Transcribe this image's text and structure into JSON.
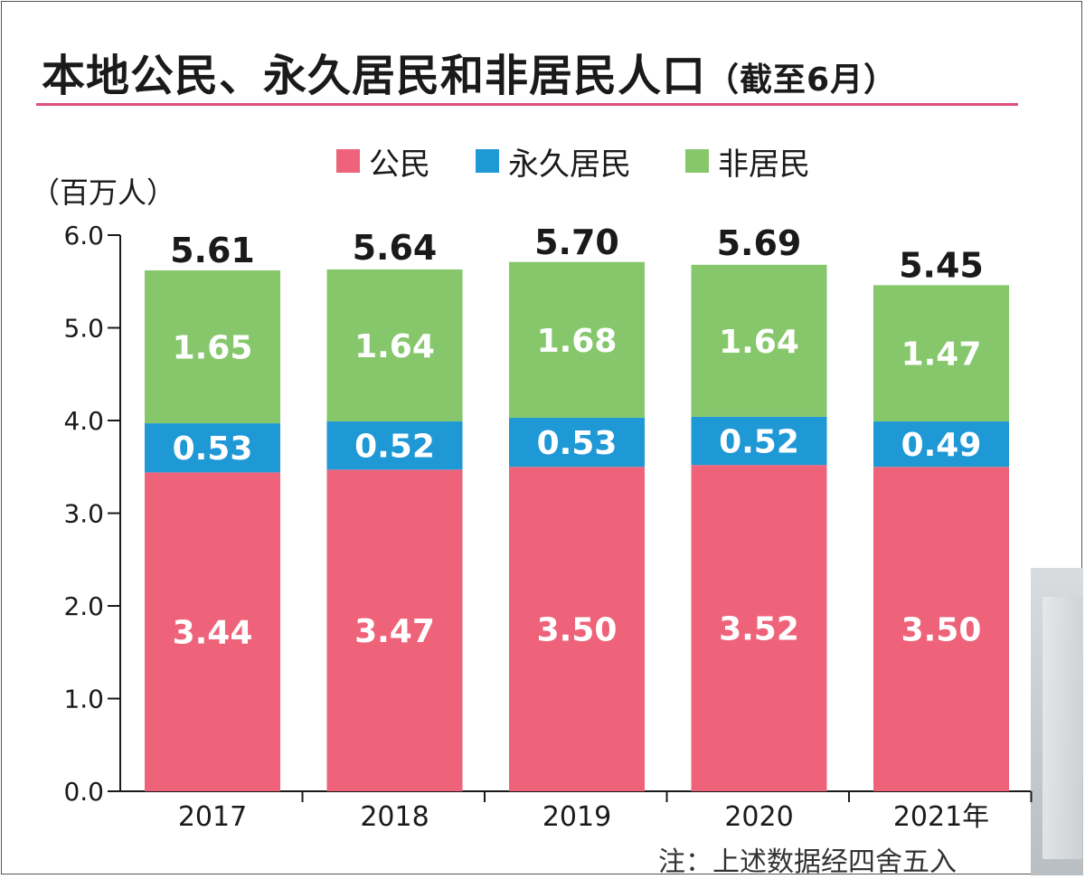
{
  "chart_data": {
    "type": "bar",
    "stacked": true,
    "title": "本地公民、永久居民和非居民人口",
    "subtitle": "（截至6月）",
    "ylabel": "（百万人）",
    "xlabel": "",
    "ylim": [
      0,
      6
    ],
    "yticks": [
      "0.0",
      "1.0",
      "2.0",
      "3.0",
      "4.0",
      "5.0",
      "6.0"
    ],
    "categories": [
      "2017",
      "2018",
      "2019",
      "2020",
      "2021年"
    ],
    "series": [
      {
        "name": "公民",
        "color": "#ee6379",
        "values": [
          3.44,
          3.47,
          3.5,
          3.52,
          3.5
        ],
        "labels": [
          "3.44",
          "3.47",
          "3.50",
          "3.52",
          "3.50"
        ]
      },
      {
        "name": "永久居民",
        "color": "#1f98d6",
        "values": [
          0.53,
          0.52,
          0.53,
          0.52,
          0.49
        ],
        "labels": [
          "0.53",
          "0.52",
          "0.53",
          "0.52",
          "0.49"
        ]
      },
      {
        "name": "非居民",
        "color": "#86c76c",
        "values": [
          1.65,
          1.64,
          1.68,
          1.64,
          1.47
        ],
        "labels": [
          "1.65",
          "1.64",
          "1.68",
          "1.64",
          "1.47"
        ]
      }
    ],
    "totals": [
      "5.61",
      "5.64",
      "5.70",
      "5.69",
      "5.45"
    ],
    "total_values": [
      5.61,
      5.64,
      5.7,
      5.69,
      5.45
    ],
    "legend_position": "top",
    "note": "注：上述数据经四舍五入"
  },
  "colors": {
    "title_rule": "#e0507a",
    "axis": "#1a1a1a"
  }
}
